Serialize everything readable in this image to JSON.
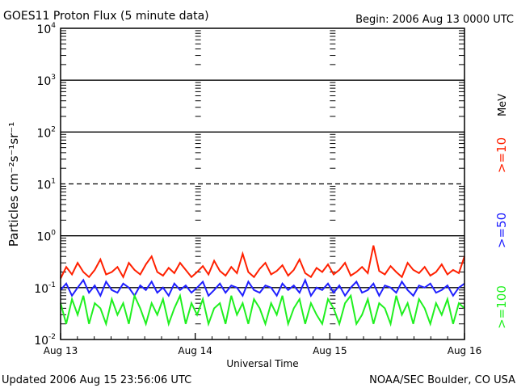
{
  "chart_data": {
    "type": "line",
    "title": "GOES11 Proton Flux (5 minute data)",
    "begin_label": "Begin: 2006 Aug 13 0000 UTC",
    "xlabel": "Universal Time",
    "ylabel": "Particles cm⁻²s⁻¹sr⁻¹",
    "y_scale": "log",
    "ylim": [
      0.01,
      10000
    ],
    "y_ticks": [
      {
        "base": "10",
        "exp": "4"
      },
      {
        "base": "10",
        "exp": "3"
      },
      {
        "base": "10",
        "exp": "2"
      },
      {
        "base": "10",
        "exp": "1"
      },
      {
        "base": "10",
        "exp": "0"
      },
      {
        "base": "10",
        "exp": "-1"
      },
      {
        "base": "10",
        "exp": "-2"
      }
    ],
    "x_ticks": [
      "Aug 13",
      "Aug 14",
      "Aug 15",
      "Aug 16"
    ],
    "xlim_days": [
      0,
      3
    ],
    "units_label": "MeV",
    "footer_left": "Updated 2006 Aug 15 23:56:06 UTC",
    "footer_right": "NOAA/SEC Boulder, CO USA",
    "series": [
      {
        "name": ">=10",
        "color": "#ff2000",
        "values": [
          0.15,
          0.25,
          0.18,
          0.3,
          0.2,
          0.16,
          0.22,
          0.35,
          0.18,
          0.2,
          0.25,
          0.16,
          0.3,
          0.22,
          0.18,
          0.28,
          0.4,
          0.2,
          0.17,
          0.24,
          0.19,
          0.3,
          0.22,
          0.16,
          0.2,
          0.26,
          0.18,
          0.33,
          0.21,
          0.17,
          0.25,
          0.19,
          0.45,
          0.2,
          0.16,
          0.23,
          0.3,
          0.18,
          0.21,
          0.27,
          0.17,
          0.22,
          0.35,
          0.19,
          0.16,
          0.24,
          0.2,
          0.28,
          0.18,
          0.22,
          0.3,
          0.17,
          0.2,
          0.25,
          0.19,
          0.65,
          0.21,
          0.18,
          0.26,
          0.2,
          0.16,
          0.3,
          0.22,
          0.19,
          0.25,
          0.17,
          0.2,
          0.28,
          0.18,
          0.22,
          0.19,
          0.4
        ]
      },
      {
        "name": ">=50",
        "color": "#2020ff",
        "values": [
          0.09,
          0.12,
          0.07,
          0.1,
          0.14,
          0.08,
          0.11,
          0.07,
          0.13,
          0.09,
          0.08,
          0.12,
          0.1,
          0.07,
          0.11,
          0.09,
          0.13,
          0.08,
          0.1,
          0.07,
          0.12,
          0.09,
          0.11,
          0.08,
          0.1,
          0.13,
          0.07,
          0.09,
          0.12,
          0.08,
          0.11,
          0.1,
          0.07,
          0.13,
          0.09,
          0.08,
          0.11,
          0.1,
          0.07,
          0.12,
          0.09,
          0.11,
          0.08,
          0.14,
          0.07,
          0.1,
          0.09,
          0.12,
          0.08,
          0.11,
          0.07,
          0.1,
          0.13,
          0.08,
          0.09,
          0.12,
          0.07,
          0.11,
          0.1,
          0.08,
          0.13,
          0.09,
          0.07,
          0.11,
          0.1,
          0.12,
          0.08,
          0.09,
          0.11,
          0.07,
          0.1,
          0.12
        ]
      },
      {
        "name": ">=100",
        "color": "#20f020",
        "values": [
          0.05,
          0.02,
          0.06,
          0.03,
          0.07,
          0.02,
          0.05,
          0.04,
          0.02,
          0.06,
          0.03,
          0.05,
          0.02,
          0.07,
          0.04,
          0.02,
          0.05,
          0.03,
          0.06,
          0.02,
          0.04,
          0.07,
          0.02,
          0.05,
          0.03,
          0.06,
          0.02,
          0.04,
          0.05,
          0.02,
          0.07,
          0.03,
          0.05,
          0.02,
          0.06,
          0.04,
          0.02,
          0.05,
          0.03,
          0.07,
          0.02,
          0.04,
          0.06,
          0.02,
          0.05,
          0.03,
          0.02,
          0.06,
          0.04,
          0.02,
          0.05,
          0.07,
          0.02,
          0.03,
          0.06,
          0.02,
          0.05,
          0.04,
          0.02,
          0.07,
          0.03,
          0.05,
          0.02,
          0.06,
          0.04,
          0.02,
          0.05,
          0.03,
          0.06,
          0.02,
          0.05,
          0.04
        ]
      }
    ]
  }
}
